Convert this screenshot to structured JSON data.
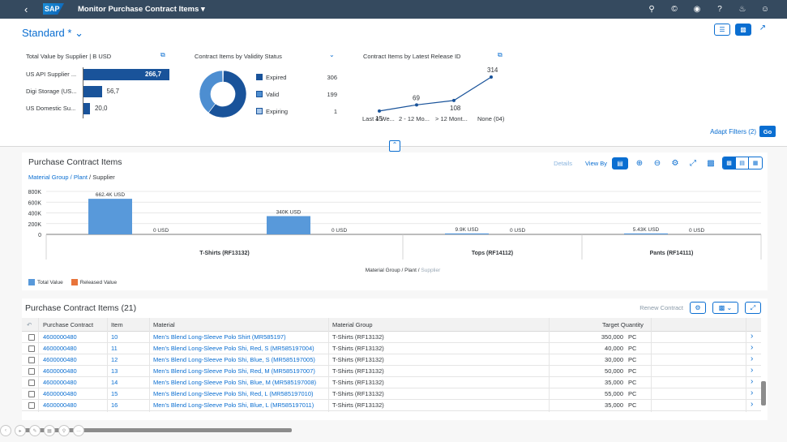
{
  "shell": {
    "app_title": "Monitor Purchase Contract Items",
    "logo": "SAP",
    "icons": [
      "search-icon",
      "copyright-icon",
      "binoculars-icon",
      "help-icon",
      "bell-icon",
      "user-icon"
    ]
  },
  "variant": {
    "name": "Standard *"
  },
  "cards": {
    "value_by_supplier": {
      "title": "Total Value by Supplier  | B USD",
      "chart_data": {
        "type": "bar",
        "orientation": "horizontal",
        "categories": [
          "US API Supplier ...",
          "Digi Storage (US...",
          "US Domestic Su..."
        ],
        "values": [
          266.7,
          56.7,
          20.0
        ],
        "value_labels": [
          "266,7",
          "56,7",
          "20,0"
        ],
        "color": "#19539a"
      }
    },
    "validity_status": {
      "title": "Contract Items by Validity Status",
      "chart_data": {
        "type": "pie",
        "donut": true,
        "categories": [
          "Expired",
          "Valid",
          "Expiring"
        ],
        "values": [
          306,
          199,
          1
        ],
        "value_labels": [
          "306",
          "199",
          "1"
        ],
        "colors": [
          "#19539a",
          "#4d8ed1",
          "#a7c7ea"
        ]
      }
    },
    "latest_release": {
      "title": "Contract Items by Latest Release ID",
      "chart_data": {
        "type": "line",
        "categories": [
          "Last 4 We...",
          "2 - 12 Mo...",
          "> 12 Mont...",
          "None (04)"
        ],
        "values": [
          15,
          69,
          108,
          314
        ],
        "value_labels": [
          "15",
          "69",
          "108",
          "314"
        ],
        "color": "#19539a"
      }
    }
  },
  "filter_bar": {
    "adapt_label": "Adapt Filters (2)",
    "go_label": "Go"
  },
  "items_chart": {
    "title": "Purchase Contract Items",
    "breadcrumb_link": "Material Group / Plant",
    "breadcrumb_sep": " / ",
    "breadcrumb_current": "Supplier",
    "details_label": "Details",
    "view_by_label": "View By",
    "chart_data": {
      "type": "bar",
      "yticks": [
        "800K",
        "600K",
        "400K",
        "200K",
        "0"
      ],
      "ylim": [
        0,
        800000
      ],
      "x_groups": [
        "T-Shirts (RF13132)",
        "Tops (RF14112)",
        "Pants (RF14111)"
      ],
      "xlabel_main": "Material Group / Plant",
      "xlabel_sep": " / ",
      "xlabel_faded": "Supplier",
      "series": [
        {
          "name": "Total Value",
          "color": "#5899da"
        },
        {
          "name": "Released Value",
          "color": "#e8743b"
        }
      ],
      "bars": [
        {
          "group": 0,
          "slot": 0,
          "total": 662400,
          "total_label": "662.4K USD",
          "released": 0,
          "released_label": "0 USD"
        },
        {
          "group": 0,
          "slot": 1,
          "total": 340000,
          "total_label": "340K USD",
          "released": 0,
          "released_label": "0 USD"
        },
        {
          "group": 1,
          "slot": 0,
          "total": 9900,
          "total_label": "9.9K USD",
          "released": 0,
          "released_label": "0 USD"
        },
        {
          "group": 2,
          "slot": 0,
          "total": 5430,
          "total_label": "5.43K USD",
          "released": 0,
          "released_label": "0 USD"
        }
      ]
    }
  },
  "table": {
    "title": "Purchase Contract Items (21)",
    "renew_label": "Renew Contract",
    "columns": [
      "Purchase Contract",
      "Item",
      "Material",
      "Material Group",
      "Target Quantity"
    ],
    "rows": [
      {
        "contract": "4600000480",
        "item": "10",
        "material": "Men's Blend Long-Sleeve Polo Shirt (MR585197)",
        "group": "T-Shirts (RF13132)",
        "qty": "350,000",
        "unit": "PC"
      },
      {
        "contract": "4600000480",
        "item": "11",
        "material": "Men's Blend Long-Sleeve Polo Shi, Red, S (MR585197004)",
        "group": "T-Shirts (RF13132)",
        "qty": "40,000",
        "unit": "PC"
      },
      {
        "contract": "4600000480",
        "item": "12",
        "material": "Men's Blend Long-Sleeve Polo Shi, Blue, S (MR585197005)",
        "group": "T-Shirts (RF13132)",
        "qty": "30,000",
        "unit": "PC"
      },
      {
        "contract": "4600000480",
        "item": "13",
        "material": "Men's Blend Long-Sleeve Polo Shi, Red, M (MR585197007)",
        "group": "T-Shirts (RF13132)",
        "qty": "50,000",
        "unit": "PC"
      },
      {
        "contract": "4600000480",
        "item": "14",
        "material": "Men's Blend Long-Sleeve Polo Shi, Blue, M (MR585197008)",
        "group": "T-Shirts (RF13132)",
        "qty": "35,000",
        "unit": "PC"
      },
      {
        "contract": "4600000480",
        "item": "15",
        "material": "Men's Blend Long-Sleeve Polo Shi, Red, L (MR585197010)",
        "group": "T-Shirts (RF13132)",
        "qty": "55,000",
        "unit": "PC"
      },
      {
        "contract": "4600000480",
        "item": "16",
        "material": "Men's Blend Long-Sleeve Polo Shi, Blue, L (MR585197011)",
        "group": "T-Shirts (RF13132)",
        "qty": "35,000",
        "unit": "PC"
      }
    ]
  }
}
